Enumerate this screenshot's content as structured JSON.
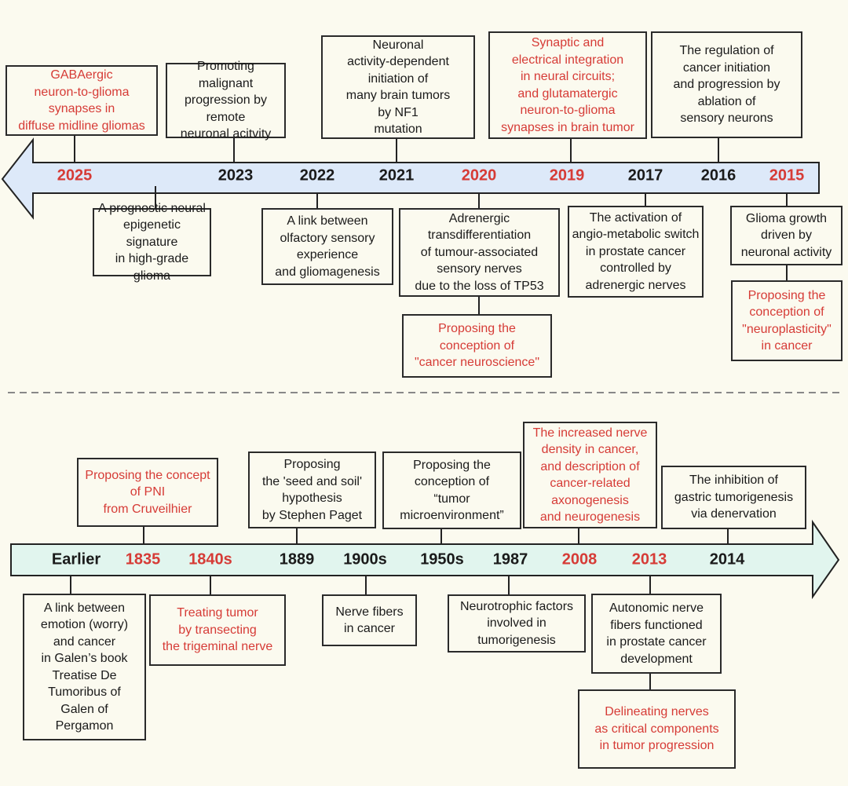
{
  "colors": {
    "highlight": "#d63b36",
    "text": "#1a1a1a",
    "top_arrow_fill": "#dde9f9",
    "bottom_arrow_fill": "#e1f5ee",
    "background": "#fbfaef"
  },
  "top_timeline": {
    "direction": "left",
    "years": [
      {
        "label": "2025",
        "highlight": true
      },
      {
        "label": "2023",
        "highlight": false
      },
      {
        "label": "2022",
        "highlight": false
      },
      {
        "label": "2021",
        "highlight": false
      },
      {
        "label": "2020",
        "highlight": true
      },
      {
        "label": "2019",
        "highlight": true
      },
      {
        "label": "2017",
        "highlight": false
      },
      {
        "label": "2016",
        "highlight": false
      },
      {
        "label": "2015",
        "highlight": true
      }
    ],
    "events": [
      {
        "text": "GABAergic\nneuron-to-glioma\nsynapses in\ndiffuse midline gliomas",
        "highlight": true
      },
      {
        "text": "Promoting malignant\nprogression by\nremote\nneuronal acitvity",
        "highlight": false
      },
      {
        "text": "Neuronal\nactivity-dependent\ninitiation of\nmany brain tumors\nby NF1\nmutation",
        "highlight": false
      },
      {
        "text": "Synaptic and\nelectrical integration\nin neural circuits;\nand glutamatergic\nneuron-to-glioma\nsynapses in brain tumor",
        "highlight": true
      },
      {
        "text": "The regulation of\ncancer initiation\nand progression by\nablation of\nsensory neurons",
        "highlight": false
      },
      {
        "text": "A prognostic neural\nepigenetic signature\nin high-grade glioma",
        "highlight": false
      },
      {
        "text": "A link between\nolfactory  sensory\nexperience\nand gliomagenesis",
        "highlight": false
      },
      {
        "text": "Adrenergic\ntransdifferentiation\nof tumour-associated\nsensory nerves\ndue to the loss of TP53",
        "highlight": false
      },
      {
        "text": "Proposing the\nconception of\n\"cancer neuroscience\"",
        "highlight": true
      },
      {
        "text": "The activation of\nangio-metabolic switch\nin prostate cancer\ncontrolled by\nadrenergic nerves",
        "highlight": false
      },
      {
        "text": "Glioma growth\ndriven by\nneuronal activity",
        "highlight": false
      },
      {
        "text": "Proposing the\nconception of\n\"neuroplasticity\"\nin cancer",
        "highlight": true
      }
    ]
  },
  "bottom_timeline": {
    "direction": "right",
    "years": [
      {
        "label": "Earlier",
        "highlight": false
      },
      {
        "label": "1835",
        "highlight": true
      },
      {
        "label": "1840s",
        "highlight": true
      },
      {
        "label": "1889",
        "highlight": false
      },
      {
        "label": "1900s",
        "highlight": false
      },
      {
        "label": "1950s",
        "highlight": false
      },
      {
        "label": "1987",
        "highlight": false
      },
      {
        "label": "2008",
        "highlight": true
      },
      {
        "label": "2013",
        "highlight": true
      },
      {
        "label": "2014",
        "highlight": false
      }
    ],
    "events": [
      {
        "text": "Proposing the concept\nof PNI\nfrom Cruveilhier",
        "highlight": true
      },
      {
        "text": "Proposing\nthe 'seed and soil'\nhypothesis\nby Stephen Paget",
        "highlight": false
      },
      {
        "text": "Proposing the\nconception of\n“tumor\nmicroenvironment”",
        "highlight": false
      },
      {
        "text": "The increased nerve\ndensity in cancer,\nand description of\ncancer-related\naxonogenesis\nand neurogenesis",
        "highlight": true
      },
      {
        "text": "The inhibition of\ngastric tumorigenesis\nvia denervation",
        "highlight": false
      },
      {
        "text": "A link between\nemotion (worry)\nand cancer\nin Galen’s book\nTreatise De\nTumoribus of\nGalen of\nPergamon",
        "highlight": false
      },
      {
        "text": "Treating tumor\nby transecting\nthe trigeminal nerve",
        "highlight": true
      },
      {
        "text": "Nerve fibers\nin cancer",
        "highlight": false
      },
      {
        "text": "Neurotrophic factors\ninvolved in\ntumorigenesis",
        "highlight": false
      },
      {
        "text": "Autonomic nerve\nfibers functioned\nin prostate cancer\ndevelopment",
        "highlight": false
      },
      {
        "text": "Delineating nerves\nas critical  components\nin tumor progression",
        "highlight": true
      }
    ]
  }
}
